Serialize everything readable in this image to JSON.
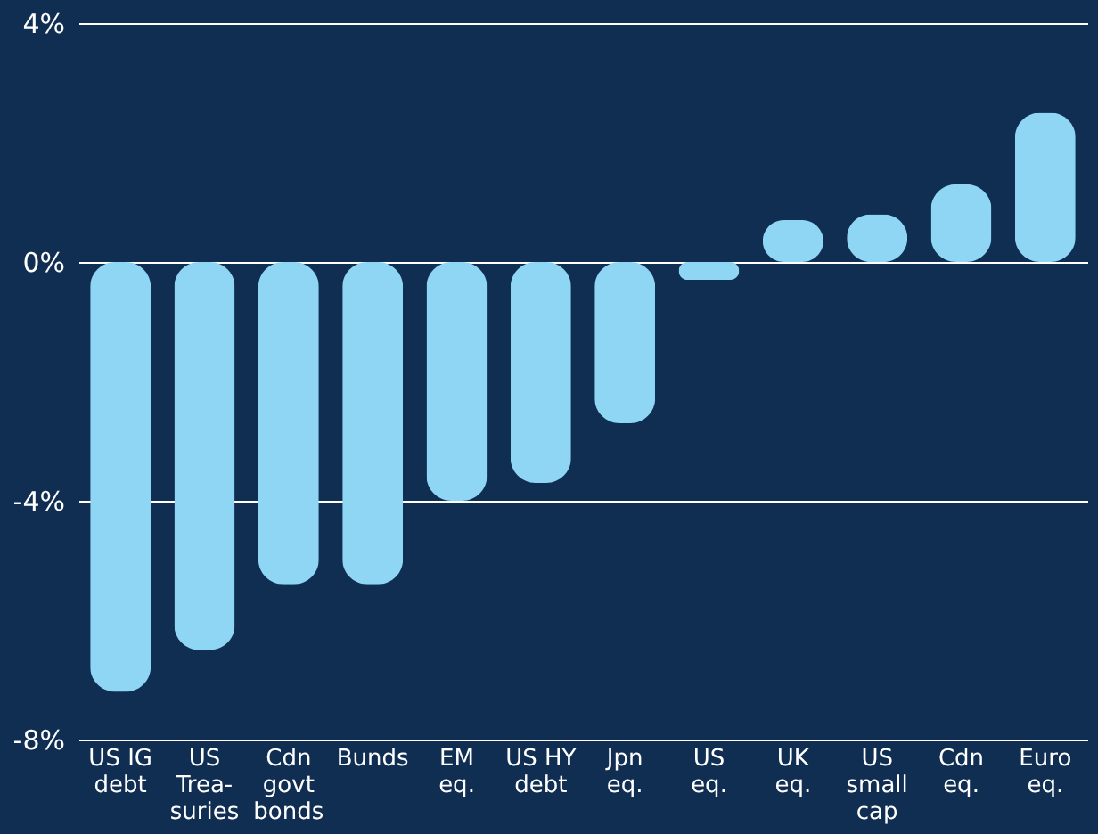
{
  "chart_data": {
    "type": "bar",
    "categories": [
      "US IG\ndebt",
      "US\nTrea-\nsuries",
      "Cdn\ngovt\nbonds",
      "Bunds",
      "EM\neq.",
      "US HY\ndebt",
      "Jpn\neq.",
      "US\neq.",
      "UK\neq.",
      "US\nsmall\ncap",
      "Cdn\neq.",
      "Euro\neq."
    ],
    "values": [
      -7.2,
      -6.5,
      -5.4,
      -5.4,
      -4.0,
      -3.7,
      -2.7,
      -0.3,
      0.7,
      0.8,
      1.3,
      2.5
    ],
    "color": "#8fd6f5",
    "ylim": [
      -8,
      4
    ],
    "yticks": [
      {
        "value": -8,
        "label": "-8%"
      },
      {
        "value": -4,
        "label": "-4%"
      },
      {
        "value": 0,
        "label": "0%"
      },
      {
        "value": 4,
        "label": "4%"
      }
    ],
    "grid": "y"
  }
}
